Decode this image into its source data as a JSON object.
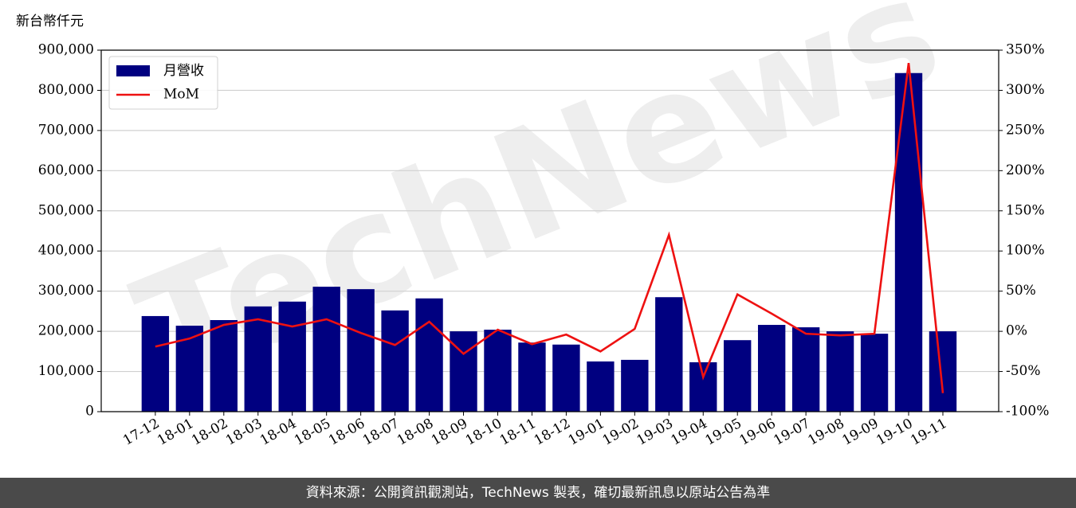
{
  "chart_data": {
    "type": "bar-line",
    "y_label": "新台幣仟元",
    "watermark": "TechNews",
    "source": "資料來源：公開資訊觀測站，TechNews 製表，確切最新訊息以原站公告為準",
    "categories": [
      "17-12",
      "18-01",
      "18-02",
      "18-03",
      "18-04",
      "18-05",
      "18-06",
      "18-07",
      "18-08",
      "18-09",
      "18-10",
      "18-11",
      "18-12",
      "19-01",
      "19-02",
      "19-03",
      "19-04",
      "19-05",
      "19-06",
      "19-07",
      "19-08",
      "19-09",
      "19-10",
      "19-11"
    ],
    "series": [
      {
        "name": "月營收",
        "type": "bar",
        "color": "#000080",
        "values": [
          238000,
          214000,
          228000,
          262000,
          274000,
          311000,
          305000,
          252000,
          282000,
          200000,
          204000,
          172000,
          167000,
          125000,
          129000,
          285000,
          123000,
          178000,
          216000,
          210000,
          200000,
          194000,
          843000,
          200000
        ]
      },
      {
        "name": "MoM",
        "type": "line",
        "axis": "y2",
        "color": "#ee1111",
        "values": [
          -19,
          -9,
          8,
          15,
          6,
          15,
          -2,
          -17,
          12,
          -28,
          2,
          -16,
          -4,
          -25,
          3,
          120,
          -57,
          46,
          22,
          -3,
          -5,
          -3,
          334,
          -77
        ]
      }
    ],
    "ylim": [
      0,
      900000
    ],
    "yticks": [
      0,
      {
        "value": 100000,
        "label": "100,000"
      },
      {
        "value": 200000,
        "label": "200,000"
      },
      {
        "value": 300000,
        "label": "300,000"
      },
      {
        "value": 400000,
        "label": "400,000"
      },
      {
        "value": 500000,
        "label": "500,000"
      },
      {
        "value": 600000,
        "label": "600,000"
      },
      {
        "value": 700000,
        "label": "700,000"
      },
      {
        "value": 800000,
        "label": "800,000"
      },
      {
        "value": 900000,
        "label": "900,000"
      }
    ],
    "y2lim": [
      -100,
      350
    ],
    "y2ticks": [
      {
        "value": -100,
        "label": "-100%"
      },
      {
        "value": -50,
        "label": "-50%"
      },
      {
        "value": 0,
        "label": "0%"
      },
      {
        "value": 50,
        "label": "50%"
      },
      {
        "value": 100,
        "label": "100%"
      },
      {
        "value": 150,
        "label": "150%"
      },
      {
        "value": 200,
        "label": "200%"
      },
      {
        "value": 250,
        "label": "250%"
      },
      {
        "value": 300,
        "label": "300%"
      },
      {
        "value": 350,
        "label": "350%"
      }
    ],
    "grid": true,
    "legend": "upper-left"
  }
}
